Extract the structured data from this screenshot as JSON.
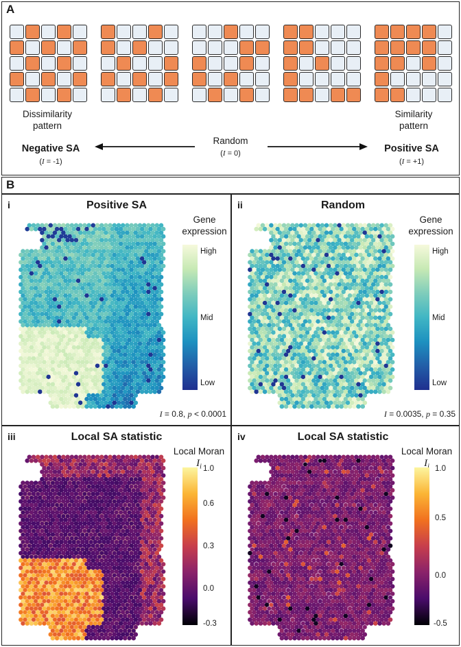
{
  "panel_a": {
    "letter": "A",
    "grids": [
      {
        "pattern": [
          [
            0,
            1,
            0,
            1,
            0
          ],
          [
            1,
            0,
            1,
            0,
            1
          ],
          [
            0,
            1,
            0,
            1,
            0
          ],
          [
            1,
            0,
            1,
            0,
            1
          ],
          [
            0,
            1,
            0,
            1,
            0
          ]
        ]
      },
      {
        "pattern": [
          [
            1,
            0,
            0,
            1,
            0
          ],
          [
            1,
            0,
            1,
            0,
            0
          ],
          [
            0,
            1,
            0,
            0,
            1
          ],
          [
            1,
            0,
            1,
            0,
            1
          ],
          [
            0,
            1,
            0,
            1,
            0
          ]
        ]
      },
      {
        "pattern": [
          [
            0,
            0,
            1,
            0,
            0
          ],
          [
            0,
            0,
            0,
            1,
            1
          ],
          [
            1,
            0,
            0,
            1,
            0
          ],
          [
            1,
            0,
            1,
            0,
            0
          ],
          [
            0,
            1,
            0,
            1,
            0
          ]
        ]
      },
      {
        "pattern": [
          [
            1,
            1,
            0,
            0,
            0
          ],
          [
            1,
            1,
            0,
            0,
            0
          ],
          [
            1,
            0,
            1,
            0,
            0
          ],
          [
            1,
            0,
            0,
            0,
            0
          ],
          [
            1,
            1,
            0,
            1,
            1
          ]
        ]
      },
      {
        "pattern": [
          [
            1,
            1,
            1,
            1,
            0
          ],
          [
            1,
            1,
            1,
            1,
            0
          ],
          [
            1,
            1,
            0,
            1,
            0
          ],
          [
            1,
            0,
            0,
            0,
            0
          ],
          [
            1,
            1,
            0,
            0,
            0
          ]
        ]
      }
    ],
    "dissimilarity_label_line1": "Dissimilarity",
    "dissimilarity_label_line2": "pattern",
    "similarity_label_line1": "Similarity",
    "similarity_label_line2": "pattern",
    "random_label": "Random",
    "random_sub": "= 0)",
    "negative_label": "Negative SA",
    "negative_sub": "= -1)",
    "positive_label": "Positive SA",
    "positive_sub": "= +1)",
    "moran_symbol": "I",
    "open_paren": "("
  },
  "panel_b": {
    "letter": "B",
    "sub_i": {
      "roman": "i",
      "title": "Positive SA",
      "legend_line1": "Gene",
      "legend_line2": "expression",
      "ticks": [
        "High",
        "Mid",
        "Low"
      ],
      "stat_I": "I",
      "stat_text1": " = 0.8, ",
      "stat_p": "p",
      "stat_text2": " < 0.0001"
    },
    "sub_ii": {
      "roman": "ii",
      "title": "Random",
      "legend_line1": "Gene",
      "legend_line2": "expression",
      "ticks": [
        "High",
        "Mid",
        "Low"
      ],
      "stat_I": "I",
      "stat_text1": " = 0.0035, ",
      "stat_p": "p",
      "stat_text2": " = 0.35"
    },
    "sub_iii": {
      "roman": "iii",
      "title": "Local SA statistic",
      "legend_line1": "Local Moran",
      "legend_sym": "I",
      "legend_subscript": "i",
      "ticks": [
        "1.0",
        "0.6",
        "0.3",
        "0.0",
        "-0.3"
      ]
    },
    "sub_iv": {
      "roman": "iv",
      "title": "Local SA statistic",
      "legend_line1": "Local Moran",
      "legend_sym": "I",
      "legend_subscript": "i",
      "ticks": [
        "1.0",
        "0.5",
        "0.0",
        "-0.5"
      ]
    }
  },
  "colors": {
    "orange": "#ef8a53",
    "light_blue": "#e8eff6",
    "ygb_high": "#f2f6d6",
    "ygb_mid": "#3ea2c4",
    "ygb_low": "#253495",
    "inferno_low": "#000004",
    "inferno_mid": "#7a1d6f",
    "inferno_high": "#fcf59f"
  }
}
